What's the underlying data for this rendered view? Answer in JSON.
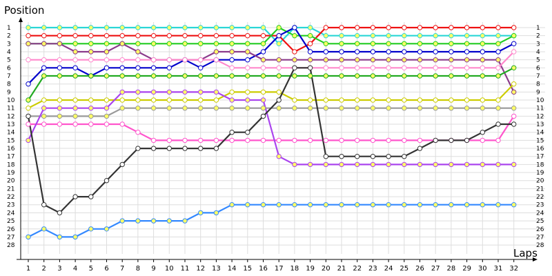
{
  "chart_data": {
    "type": "line",
    "title": "",
    "xlabel": "Laps",
    "ylabel": "Position",
    "x_ticks": [
      1,
      2,
      3,
      4,
      5,
      6,
      7,
      8,
      9,
      10,
      11,
      12,
      13,
      14,
      15,
      16,
      17,
      18,
      19,
      20,
      21,
      22,
      23,
      24,
      25,
      26,
      27,
      28,
      29,
      30,
      31,
      32
    ],
    "y_ticks": [
      1,
      2,
      3,
      4,
      5,
      6,
      7,
      8,
      9,
      10,
      11,
      12,
      13,
      14,
      15,
      16,
      17,
      18,
      19,
      20,
      21,
      22,
      23,
      24,
      25,
      26,
      27,
      28
    ],
    "xlim": [
      0,
      33
    ],
    "ylim": [
      1,
      28
    ],
    "y_inverted": true,
    "grid": true,
    "legend": "none",
    "series": [
      {
        "color": "#2ad6d6",
        "x": [
          1,
          2,
          3,
          4,
          5,
          6,
          7,
          8,
          9,
          10,
          11,
          12,
          13,
          14,
          15,
          16,
          17,
          18,
          19,
          20,
          21,
          22,
          23,
          24,
          25,
          26,
          27,
          28,
          29,
          30,
          31,
          32
        ],
        "values": [
          1,
          1,
          1,
          1,
          1,
          1,
          1,
          1,
          1,
          1,
          1,
          1,
          1,
          1,
          1,
          1,
          3,
          1,
          1,
          2,
          2,
          2,
          2,
          2,
          2,
          2,
          2,
          2,
          2,
          2,
          2,
          2
        ]
      },
      {
        "color": "#ee1111",
        "x": [
          1,
          2,
          3,
          4,
          5,
          6,
          7,
          8,
          9,
          10,
          11,
          12,
          13,
          14,
          15,
          16,
          17,
          18,
          19,
          20,
          21,
          22,
          23,
          24,
          25,
          26,
          27,
          28,
          29,
          30,
          31,
          32
        ],
        "values": [
          2,
          2,
          2,
          2,
          2,
          2,
          2,
          2,
          2,
          2,
          2,
          2,
          2,
          2,
          2,
          2,
          2,
          4,
          3,
          1,
          1,
          1,
          1,
          1,
          1,
          1,
          1,
          1,
          1,
          1,
          1,
          1
        ]
      },
      {
        "color": "#22cc22",
        "x": [
          1,
          2,
          3,
          4,
          5,
          6,
          7,
          8,
          9,
          10,
          11,
          12,
          13,
          14,
          15,
          16,
          17,
          18,
          19,
          20,
          21,
          22,
          23,
          24,
          25,
          26,
          27,
          28,
          29,
          30,
          31,
          32
        ],
        "values": [
          3,
          3,
          3,
          3,
          3,
          3,
          3,
          3,
          3,
          3,
          3,
          3,
          3,
          3,
          3,
          3,
          1,
          2,
          2,
          3,
          3,
          3,
          3,
          3,
          3,
          3,
          3,
          3,
          3,
          3,
          3,
          2
        ]
      },
      {
        "color": "#0000cc",
        "x": [
          1,
          2,
          3,
          4,
          5,
          6,
          7,
          8,
          9,
          10,
          11,
          12,
          13,
          14,
          15,
          16,
          17,
          18,
          19,
          20,
          21,
          22,
          23,
          24,
          25,
          26,
          27,
          28,
          29,
          30,
          31,
          32
        ],
        "values": [
          8,
          6,
          6,
          6,
          7,
          6,
          6,
          6,
          6,
          6,
          5,
          6,
          5,
          5,
          5,
          4,
          2,
          1,
          4,
          4,
          4,
          4,
          4,
          4,
          4,
          4,
          4,
          4,
          4,
          4,
          4,
          3
        ]
      },
      {
        "color": "#8b3a8b",
        "x": [
          1,
          2,
          3,
          4,
          5,
          6,
          7,
          8,
          9,
          10,
          11,
          12,
          13,
          14,
          15,
          16,
          17,
          18,
          19,
          20,
          21,
          22,
          23,
          24,
          25,
          26,
          27,
          28,
          29,
          30,
          31,
          32
        ],
        "values": [
          3,
          3,
          3,
          4,
          4,
          4,
          3,
          4,
          5,
          5,
          5,
          5,
          4,
          4,
          4,
          5,
          5,
          5,
          5,
          5,
          5,
          5,
          5,
          5,
          5,
          5,
          5,
          5,
          5,
          5,
          5,
          9
        ]
      },
      {
        "color": "#ff88cc",
        "x": [
          1,
          2,
          3,
          4,
          5,
          6,
          7,
          8,
          9,
          10,
          11,
          12,
          13,
          14,
          15,
          16,
          17,
          18,
          19,
          20,
          21,
          22,
          23,
          24,
          25,
          26,
          27,
          28,
          29,
          30,
          31,
          32
        ],
        "values": [
          5,
          5,
          5,
          5,
          5,
          5,
          5,
          5,
          5,
          5,
          5,
          5,
          5,
          6,
          6,
          6,
          6,
          6,
          6,
          6,
          6,
          6,
          6,
          6,
          6,
          6,
          6,
          6,
          6,
          6,
          6,
          4
        ]
      },
      {
        "color": "#22aa22",
        "x": [
          1,
          2,
          3,
          4,
          5,
          6,
          7,
          8,
          9,
          10,
          11,
          12,
          13,
          14,
          15,
          16,
          17,
          18,
          19,
          20,
          21,
          22,
          23,
          24,
          25,
          26,
          27,
          28,
          29,
          30,
          31,
          32
        ],
        "values": [
          10,
          7,
          7,
          7,
          7,
          7,
          7,
          7,
          7,
          7,
          7,
          7,
          7,
          7,
          7,
          7,
          7,
          7,
          7,
          7,
          7,
          7,
          7,
          7,
          7,
          7,
          7,
          7,
          7,
          7,
          7,
          6
        ]
      },
      {
        "color": "#cccc00",
        "x": [
          1,
          2,
          3,
          4,
          5,
          6,
          7,
          8,
          9,
          10,
          11,
          12,
          13,
          14,
          15,
          16,
          17,
          18,
          19,
          20,
          21,
          22,
          23,
          24,
          25,
          26,
          27,
          28,
          29,
          30,
          31,
          32
        ],
        "values": [
          11,
          10,
          10,
          10,
          10,
          10,
          10,
          10,
          10,
          10,
          10,
          10,
          10,
          9,
          9,
          9,
          9,
          10,
          10,
          10,
          10,
          10,
          10,
          10,
          10,
          10,
          10,
          10,
          10,
          10,
          10,
          8
        ]
      },
      {
        "color": "#999999",
        "x": [
          1,
          2,
          3,
          4,
          5,
          6,
          7,
          8,
          9,
          10,
          11,
          12,
          13,
          14,
          15,
          16,
          17,
          18,
          19,
          20,
          21,
          22,
          23,
          24,
          25,
          26,
          27,
          28,
          29,
          30,
          31,
          32
        ],
        "values": [
          12,
          12,
          12,
          12,
          12,
          12,
          11,
          11,
          11,
          11,
          11,
          11,
          11,
          11,
          11,
          11,
          11,
          11,
          11,
          11,
          11,
          11,
          11,
          11,
          11,
          11,
          11,
          11,
          11,
          11,
          11,
          11
        ]
      },
      {
        "color": "#ff55cc",
        "x": [
          1,
          2,
          3,
          4,
          5,
          6,
          7,
          8,
          9,
          10,
          11,
          12,
          13,
          14,
          15,
          16,
          17,
          18,
          19,
          20,
          21,
          22,
          23,
          24,
          25,
          26,
          27,
          28,
          29,
          30,
          31,
          32
        ],
        "values": [
          13,
          13,
          13,
          13,
          13,
          13,
          13,
          14,
          15,
          15,
          15,
          15,
          15,
          15,
          15,
          15,
          15,
          15,
          15,
          15,
          15,
          15,
          15,
          15,
          15,
          15,
          15,
          15,
          15,
          15,
          15,
          12
        ]
      },
      {
        "color": "#aa44ee",
        "x": [
          1,
          2,
          3,
          4,
          5,
          6,
          7,
          8,
          9,
          10,
          11,
          12,
          13,
          14,
          15,
          16,
          17,
          18,
          19,
          20,
          21,
          22,
          23,
          24,
          25,
          26,
          27,
          28,
          29,
          30,
          31,
          32
        ],
        "values": [
          15,
          11,
          11,
          11,
          11,
          11,
          9,
          9,
          9,
          9,
          9,
          9,
          9,
          10,
          10,
          10,
          17,
          18,
          18,
          18,
          18,
          18,
          18,
          18,
          18,
          18,
          18,
          18,
          18,
          18,
          18,
          18
        ]
      },
      {
        "color": "#333333",
        "x": [
          1,
          2,
          3,
          4,
          5,
          6,
          7,
          8,
          9,
          10,
          11,
          12,
          13,
          14,
          15,
          16,
          17,
          18,
          19,
          20,
          21,
          22,
          23,
          24,
          25,
          26,
          27,
          28,
          29,
          30,
          31,
          32
        ],
        "values": [
          12,
          23,
          24,
          22,
          22,
          20,
          18,
          16,
          16,
          16,
          16,
          16,
          16,
          14,
          14,
          12,
          10,
          6,
          6,
          17,
          17,
          17,
          17,
          17,
          17,
          16,
          15,
          15,
          15,
          14,
          13,
          13
        ]
      },
      {
        "color": "#3388ff",
        "x": [
          1,
          2,
          3,
          4,
          5,
          6,
          7,
          8,
          9,
          10,
          11,
          12,
          13,
          14,
          15,
          16,
          17,
          18,
          19,
          20,
          21,
          22,
          23,
          24,
          25,
          26,
          27,
          28,
          29,
          30,
          31,
          32
        ],
        "values": [
          27,
          26,
          27,
          27,
          26,
          26,
          25,
          25,
          25,
          25,
          25,
          24,
          24,
          23,
          23,
          23,
          23,
          23,
          23,
          23,
          23,
          23,
          23,
          23,
          23,
          23,
          23,
          23,
          23,
          23,
          23,
          23
        ]
      }
    ]
  }
}
